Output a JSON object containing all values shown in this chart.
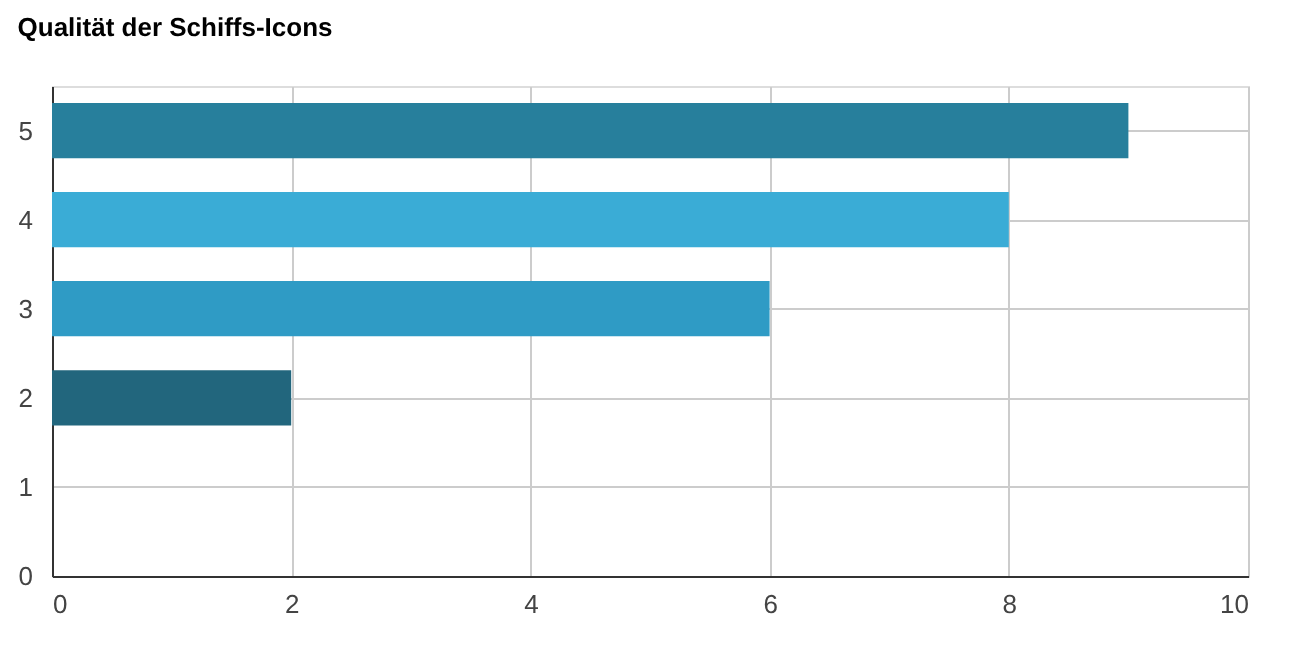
{
  "chart_data": {
    "type": "bar",
    "orientation": "horizontal",
    "title": "Qualität der Schiffs-Icons",
    "x": [
      5,
      4,
      3,
      2
    ],
    "values": [
      9,
      8,
      6,
      2
    ],
    "colors": [
      "#277f9c",
      "#3aacd6",
      "#2f9bc5",
      "#22667d"
    ],
    "xlim": [
      0,
      10
    ],
    "xticks": [
      0,
      2,
      4,
      6,
      8,
      10
    ],
    "ylim": [
      0,
      5.5
    ],
    "yticks": [
      0,
      1,
      2,
      3,
      4,
      5
    ],
    "grid": true
  }
}
